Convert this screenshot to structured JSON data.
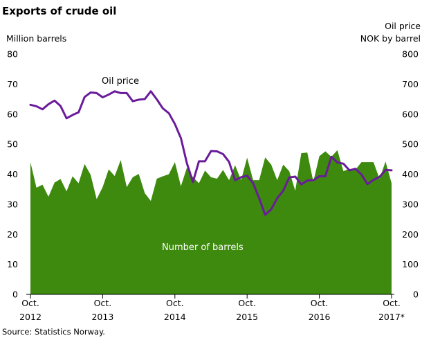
{
  "chart_data": {
    "type": "area",
    "title": "Exports of crude oil",
    "ylabel_left": "Million barrels",
    "ylabel_right": [
      "Oil price",
      "NOK by barrel"
    ],
    "ylim_left": [
      0,
      80
    ],
    "ylim_right": [
      0,
      800
    ],
    "yticks_left": [
      "0",
      "10",
      "20",
      "30",
      "40",
      "50",
      "60",
      "70",
      "80"
    ],
    "yticks_right": [
      "0",
      "100",
      "200",
      "300",
      "400",
      "500",
      "600",
      "700",
      "800"
    ],
    "x_tick_labels": [
      {
        "month": "Oct.",
        "year": "2012"
      },
      {
        "month": "Oct.",
        "year": "2013"
      },
      {
        "month": "Oct.",
        "year": "2014"
      },
      {
        "month": "Oct.",
        "year": "2015"
      },
      {
        "month": "Oct.",
        "year": "2016"
      },
      {
        "month": "Oct.",
        "year": "2017*"
      }
    ],
    "x_range": [
      "2012-10",
      "2017-10"
    ],
    "x": [
      "2012-10",
      "2012-11",
      "2012-12",
      "2013-01",
      "2013-02",
      "2013-03",
      "2013-04",
      "2013-05",
      "2013-06",
      "2013-07",
      "2013-08",
      "2013-09",
      "2013-10",
      "2013-11",
      "2013-12",
      "2014-01",
      "2014-02",
      "2014-03",
      "2014-04",
      "2014-05",
      "2014-06",
      "2014-07",
      "2014-08",
      "2014-09",
      "2014-10",
      "2014-11",
      "2014-12",
      "2015-01",
      "2015-02",
      "2015-03",
      "2015-04",
      "2015-05",
      "2015-06",
      "2015-07",
      "2015-08",
      "2015-09",
      "2015-10",
      "2015-11",
      "2015-12",
      "2016-01",
      "2016-02",
      "2016-03",
      "2016-04",
      "2016-05",
      "2016-06",
      "2016-07",
      "2016-08",
      "2016-09",
      "2016-10",
      "2016-11",
      "2016-12",
      "2017-01",
      "2017-02",
      "2017-03",
      "2017-04",
      "2017-05",
      "2017-06",
      "2017-07",
      "2017-08",
      "2017-09",
      "2017-10"
    ],
    "series": [
      {
        "name": "Number of barrels",
        "type": "area",
        "axis": "left",
        "color": "#3d8a0e",
        "values": [
          44.0,
          35.5,
          36.5,
          32.5,
          37.2,
          38.4,
          34.3,
          39.3,
          37.0,
          43.4,
          39.8,
          31.7,
          35.7,
          41.6,
          39.4,
          44.7,
          35.7,
          39.0,
          40.1,
          33.7,
          31.1,
          38.5,
          39.3,
          40.0,
          44.0,
          36.0,
          42.2,
          39.0,
          37.0,
          41.2,
          39.0,
          38.5,
          41.4,
          38.0,
          43.0,
          38.0,
          45.5,
          38.0,
          38.0,
          45.6,
          43.2,
          38.0,
          43.2,
          41.0,
          34.5,
          47.0,
          47.2,
          37.5,
          46.0,
          47.6,
          45.8,
          48.0,
          41.0,
          41.8,
          41.5,
          44.0,
          44.0,
          44.0,
          38.5,
          44.2,
          37.0
        ]
      },
      {
        "name": "Oil price",
        "type": "line",
        "axis": "right",
        "color": "#6a1b9a",
        "values": [
          631,
          626,
          616,
          633,
          645,
          627,
          586,
          597,
          606,
          657,
          672,
          670,
          656,
          665,
          676,
          670,
          670,
          643,
          648,
          650,
          676,
          649,
          619,
          603,
          567,
          520,
          436,
          374,
          443,
          443,
          477,
          476,
          467,
          441,
          380,
          390,
          395,
          370,
          320,
          265,
          283,
          320,
          345,
          389,
          392,
          366,
          379,
          380,
          393,
          393,
          458,
          439,
          435,
          413,
          418,
          399,
          367,
          381,
          391,
          414,
          413
        ]
      }
    ],
    "annotations": [
      "Oil price",
      "Number of barrels"
    ],
    "source": "Source: Statistics Norway.",
    "grid": false
  }
}
